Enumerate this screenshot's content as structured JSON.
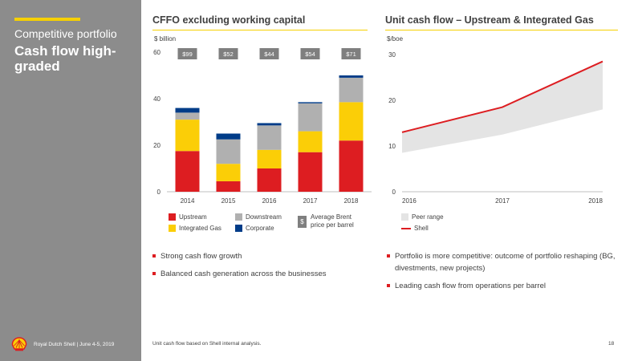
{
  "sidebar": {
    "subtitle": "Competitive portfolio",
    "title": "Cash flow high-graded"
  },
  "footer": {
    "company": "Royal Dutch Shell | June 4-5, 2019",
    "note": "Unit cash flow based on Shell internal analysis.",
    "page": "18"
  },
  "colors": {
    "upstream": "#dd1d21",
    "integrated_gas": "#fbce07",
    "downstream": "#b0b0b0",
    "corporate": "#003c88",
    "peer": "#e4e4e4",
    "shell": "#dd1d21",
    "sidebar": "#8c8c8c",
    "brent_box": "#7f7f7f"
  },
  "chart_data": [
    {
      "type": "bar",
      "stacked": true,
      "title": "CFFO excluding working capital",
      "ylabel": "$ billion",
      "ylim": [
        0,
        60
      ],
      "yticks": [
        "0",
        "20",
        "40",
        "60"
      ],
      "categories": [
        "2014",
        "2015",
        "2016",
        "2017",
        "2018"
      ],
      "series": [
        {
          "name": "Upstream",
          "color_key": "upstream",
          "values": [
            17.5,
            4.5,
            10,
            17,
            22
          ]
        },
        {
          "name": "Integrated Gas",
          "color_key": "integrated_gas",
          "values": [
            13.5,
            7.5,
            8,
            9,
            16.5
          ]
        },
        {
          "name": "Downstream",
          "color_key": "downstream",
          "values": [
            3,
            10.5,
            10.5,
            12,
            10.5
          ]
        },
        {
          "name": "Corporate",
          "color_key": "corporate",
          "values": [
            2,
            2.5,
            1,
            0.5,
            1
          ]
        }
      ],
      "price_labels": [
        "$99",
        "$52",
        "$44",
        "$54",
        "$71"
      ],
      "legend": [
        {
          "label": "Upstream",
          "color_key": "upstream"
        },
        {
          "label": "Integrated Gas",
          "color_key": "integrated_gas"
        },
        {
          "label": "Downstream",
          "color_key": "downstream"
        },
        {
          "label": "Corporate",
          "color_key": "corporate"
        }
      ],
      "brent_legend": {
        "symbol": "$",
        "label": "Average Brent price per barrel"
      },
      "grid": false
    },
    {
      "type": "area",
      "title": "Unit cash flow – Upstream & Integrated Gas",
      "ylabel": "$/boe",
      "ylim": [
        0,
        30
      ],
      "yticks": [
        "0",
        "10",
        "20",
        "30"
      ],
      "x": [
        "2016",
        "2017",
        "2018"
      ],
      "peer_range": {
        "name": "Peer range",
        "lower": [
          8.5,
          12.5,
          18
        ],
        "upper": [
          13,
          18.5,
          28.5
        ]
      },
      "series": [
        {
          "name": "Shell",
          "values": [
            13,
            18.5,
            28.5
          ]
        }
      ],
      "legend": [
        {
          "label": "Peer range",
          "kind": "area"
        },
        {
          "label": "Shell",
          "kind": "line"
        }
      ],
      "grid": false
    }
  ],
  "bullets_left": [
    "Strong cash flow growth",
    "Balanced cash generation across the businesses"
  ],
  "bullets_right": [
    "Portfolio is more competitive: outcome of portfolio reshaping (BG, divestments, new projects)",
    "Leading cash flow from operations per barrel"
  ]
}
